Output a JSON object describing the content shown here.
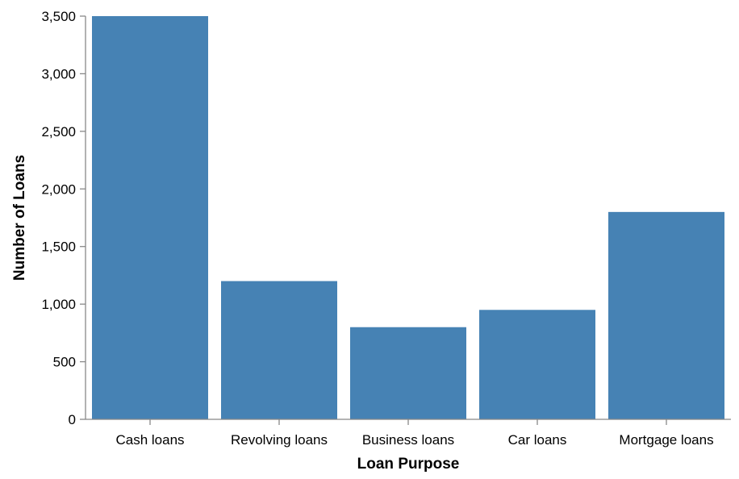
{
  "chart_data": {
    "type": "bar",
    "title": "",
    "xlabel": "Loan Purpose",
    "ylabel": "Number of Loans",
    "categories": [
      "Cash loans",
      "Revolving loans",
      "Business loans",
      "Car loans",
      "Mortgage loans"
    ],
    "values": [
      3500,
      1200,
      800,
      950,
      1800
    ],
    "ylim": [
      0,
      3500
    ],
    "yticks": [
      "0",
      "500",
      "1,000",
      "1,500",
      "2,000",
      "2,500",
      "3,000",
      "3,500"
    ],
    "grid": false,
    "legend": "none",
    "bar_color": "#4682b4",
    "axis_color": "#888888"
  }
}
